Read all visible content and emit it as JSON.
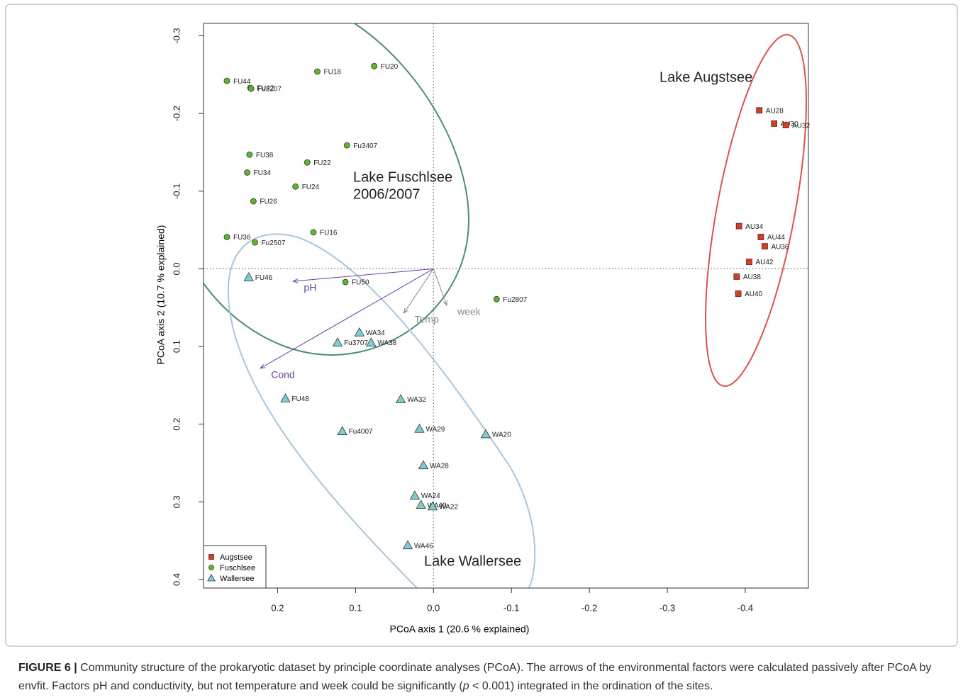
{
  "chart_data": {
    "type": "scatter",
    "xlabel": "PCoA axis 1 (20.6 % explained)",
    "ylabel": "PCoA axis 2 (10.7 % explained)",
    "xlim": [
      0.295,
      -0.481
    ],
    "ylim": [
      0.411,
      -0.316
    ],
    "xticks": [
      0.2,
      0.1,
      {
        "value": 0,
        "label": "0.0"
      },
      -0.1,
      -0.2,
      -0.3,
      -0.4
    ],
    "yticks": [
      -0.3,
      -0.2,
      -0.1,
      {
        "value": 0,
        "label": "0.0"
      },
      0.1,
      0.2,
      0.3,
      0.4
    ],
    "legend": "lower left",
    "series": [
      {
        "name": "Augstsee",
        "color": "#e2381c",
        "marker": "square",
        "labels": [
          "AU28",
          "AU30",
          "AU32",
          "AU34",
          "AU44",
          "AU36",
          "AU42",
          "AU38",
          "AU40"
        ],
        "x": [
          -0.418,
          -0.437,
          -0.452,
          -0.392,
          -0.42,
          -0.425,
          -0.405,
          -0.389,
          -0.391
        ],
        "y": [
          -0.204,
          -0.187,
          -0.185,
          -0.055,
          -0.041,
          -0.029,
          -0.009,
          0.01,
          0.032
        ]
      },
      {
        "name": "Fuschlsee",
        "color": "#5cb82a",
        "marker": "circle",
        "labels": [
          "FU44",
          "FU42",
          "Fu2207",
          "FU18",
          "FU20",
          "Fu3407",
          "FU38",
          "FU22",
          "FU34",
          "FU24",
          "FU26",
          "FU16",
          "FU36",
          "Fu2507",
          "FU50",
          "Fu2807"
        ],
        "x": [
          0.265,
          0.235,
          0.234,
          0.149,
          0.076,
          0.111,
          0.236,
          0.162,
          0.239,
          0.177,
          0.231,
          0.154,
          0.265,
          0.229,
          0.113,
          -0.081
        ],
        "y": [
          -0.242,
          -0.233,
          -0.232,
          -0.254,
          -0.261,
          -0.159,
          -0.147,
          -0.137,
          -0.124,
          -0.106,
          -0.087,
          -0.047,
          -0.041,
          -0.034,
          0.017,
          0.039
        ]
      },
      {
        "name": "Wallersee",
        "color": "#7dcdd0",
        "marker": "triangle",
        "labels": [
          "FU46",
          "WA34",
          "Fu3707",
          "WA38",
          "FU48",
          "WA32",
          "Fu4007",
          "WA29",
          "WA20",
          "WA28",
          "WA24",
          "WA40",
          "WA22",
          "WA46"
        ],
        "x": [
          0.237,
          0.095,
          0.123,
          0.08,
          0.19,
          0.042,
          0.117,
          0.018,
          -0.067,
          0.013,
          0.024,
          0.016,
          0.001,
          0.033
        ],
        "y": [
          0.011,
          0.082,
          0.095,
          0.095,
          0.167,
          0.168,
          0.209,
          0.206,
          0.213,
          0.253,
          0.292,
          0.304,
          0.306,
          0.356
        ]
      }
    ],
    "arrows": [
      {
        "label": "pH",
        "x": 0.18,
        "y": 0.016,
        "color": "#6a3fa0"
      },
      {
        "label": "Cond",
        "x": 0.222,
        "y": 0.128,
        "color": "#6a3fa0"
      },
      {
        "label": "Temp",
        "x": 0.038,
        "y": 0.057,
        "color": "#8a8a8a"
      },
      {
        "label": "week",
        "x": -0.017,
        "y": 0.047,
        "color": "#8a8a8a"
      }
    ],
    "annotations": [
      "Lake Augstsee",
      "Lake Fuschlsee",
      "2006/2007",
      "Lake Wallersee"
    ]
  },
  "caption": {
    "label": "FIGURE 6 |",
    "text": " Community structure of the prokaryotic dataset by principle coordinate analyses (PCoA). The arrows of the environmental factors were calculated passively after PCoA by envfit. Factors pH and conductivity, but not temperature and week could be significantly (",
    "italic": "p",
    "text_end": " < 0.001) integrated in the ordination of the sites."
  }
}
